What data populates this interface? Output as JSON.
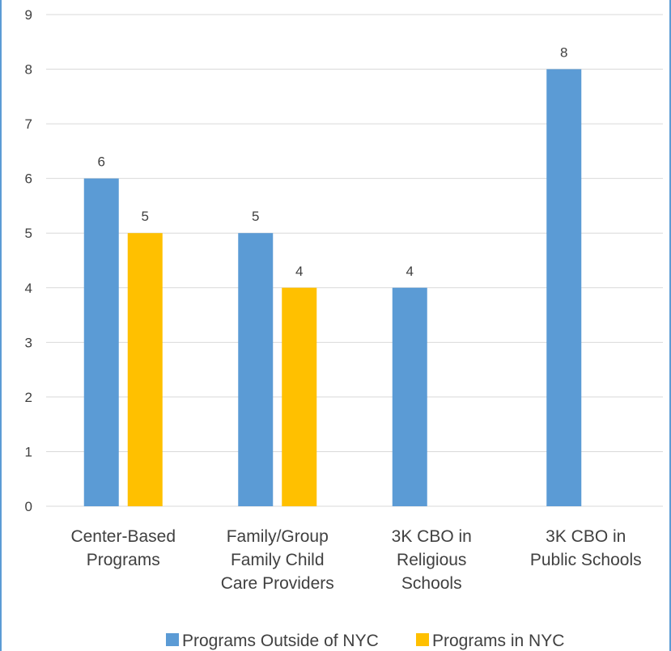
{
  "chart_data": {
    "type": "bar",
    "title": "",
    "xlabel": "",
    "ylabel": "",
    "categories": [
      [
        "Center-Based",
        "Programs"
      ],
      [
        "Family/Group",
        "Family Child",
        "Care Providers"
      ],
      [
        "3K CBO in",
        "Religious",
        "Schools"
      ],
      [
        "3K CBO in",
        "Public Schools"
      ]
    ],
    "series": [
      {
        "name": "Programs Outside of NYC",
        "color": "#5b9bd5",
        "values": [
          6,
          5,
          4,
          8
        ]
      },
      {
        "name": "Programs in NYC",
        "color": "#ffc000",
        "values": [
          5,
          4,
          null,
          null
        ]
      }
    ],
    "ylim": [
      0,
      9
    ],
    "yticks": [
      0,
      1,
      2,
      3,
      4,
      5,
      6,
      7,
      8,
      9
    ],
    "grid": true,
    "legend": "bottom"
  }
}
